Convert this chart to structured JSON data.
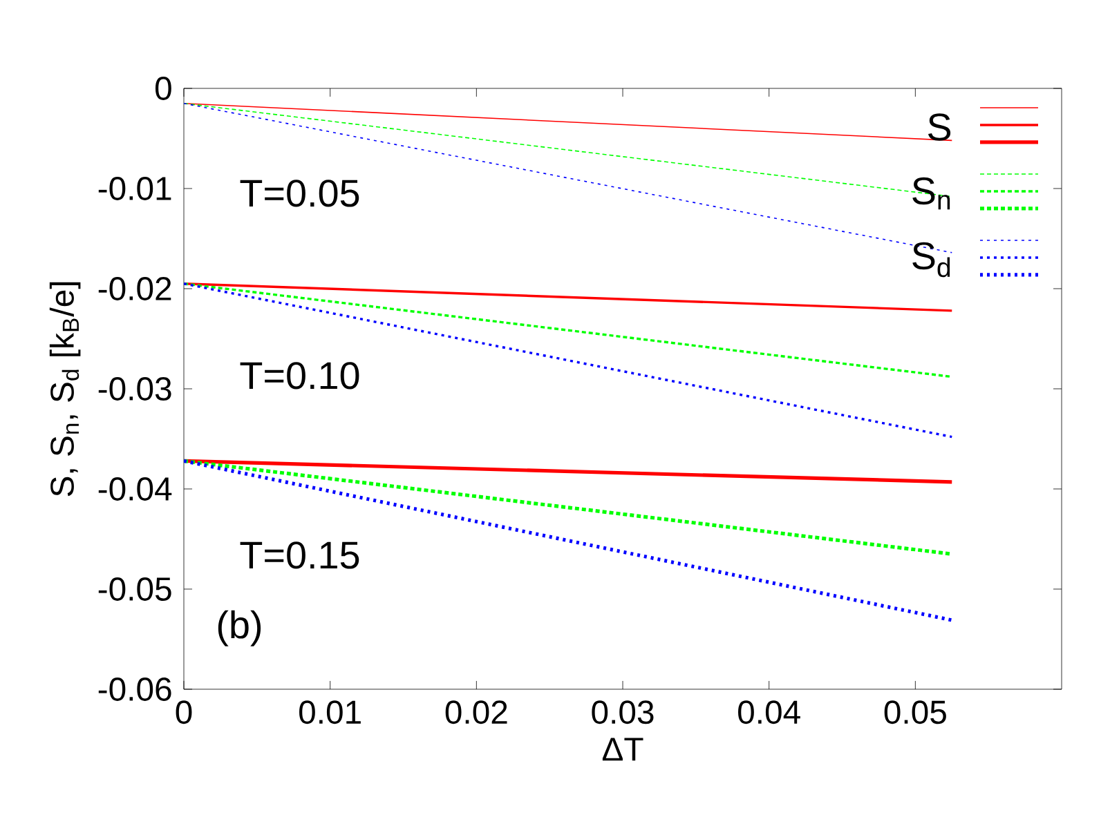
{
  "chart_data": {
    "type": "line",
    "xlabel": "ΔT",
    "ylabel": "S, S$_{n}$, S$_{d}$ [k$_{B}$/e]",
    "x": [
      0,
      0.0525
    ],
    "xlim": [
      0,
      0.06
    ],
    "xticks": [
      0,
      0.01,
      0.02,
      0.03,
      0.04,
      0.05
    ],
    "ylim": [
      -0.06,
      0
    ],
    "yticks": [
      0,
      -0.01,
      -0.02,
      -0.03,
      -0.04,
      -0.05,
      -0.06
    ],
    "grid": false,
    "legend": "top right",
    "annotations": [
      "T=0.05",
      "T=0.10",
      "T=0.15",
      "(b)"
    ],
    "series": [
      {
        "name": "S",
        "color": "#ff0000",
        "line_style": "solid",
        "values": [
          -0.0015,
          -0.0052
        ]
      },
      {
        "color": "#ff0000",
        "line_style": "solid",
        "values": [
          -0.0195,
          -0.0222
        ]
      },
      {
        "color": "#ff0000",
        "line_style": "solid",
        "values": [
          -0.0372,
          -0.0393
        ]
      },
      {
        "name": "S$_{n}$",
        "color": "#00ff00",
        "line_style": "dashed",
        "values": [
          -0.0015,
          -0.0108
        ]
      },
      {
        "color": "#00ff00",
        "line_style": "dashed",
        "values": [
          -0.0195,
          -0.0288
        ]
      },
      {
        "color": "#00ff00",
        "line_style": "dashed",
        "values": [
          -0.0372,
          -0.0465
        ]
      },
      {
        "name": "S$_{d}$",
        "color": "#0000ff",
        "line_style": "dotted",
        "values": [
          -0.0015,
          -0.0164
        ]
      },
      {
        "color": "#0000ff",
        "line_style": "dotted",
        "values": [
          -0.0195,
          -0.0348
        ]
      },
      {
        "color": "#0000ff",
        "line_style": "dotted",
        "values": [
          -0.0372,
          -0.0531
        ]
      }
    ]
  }
}
